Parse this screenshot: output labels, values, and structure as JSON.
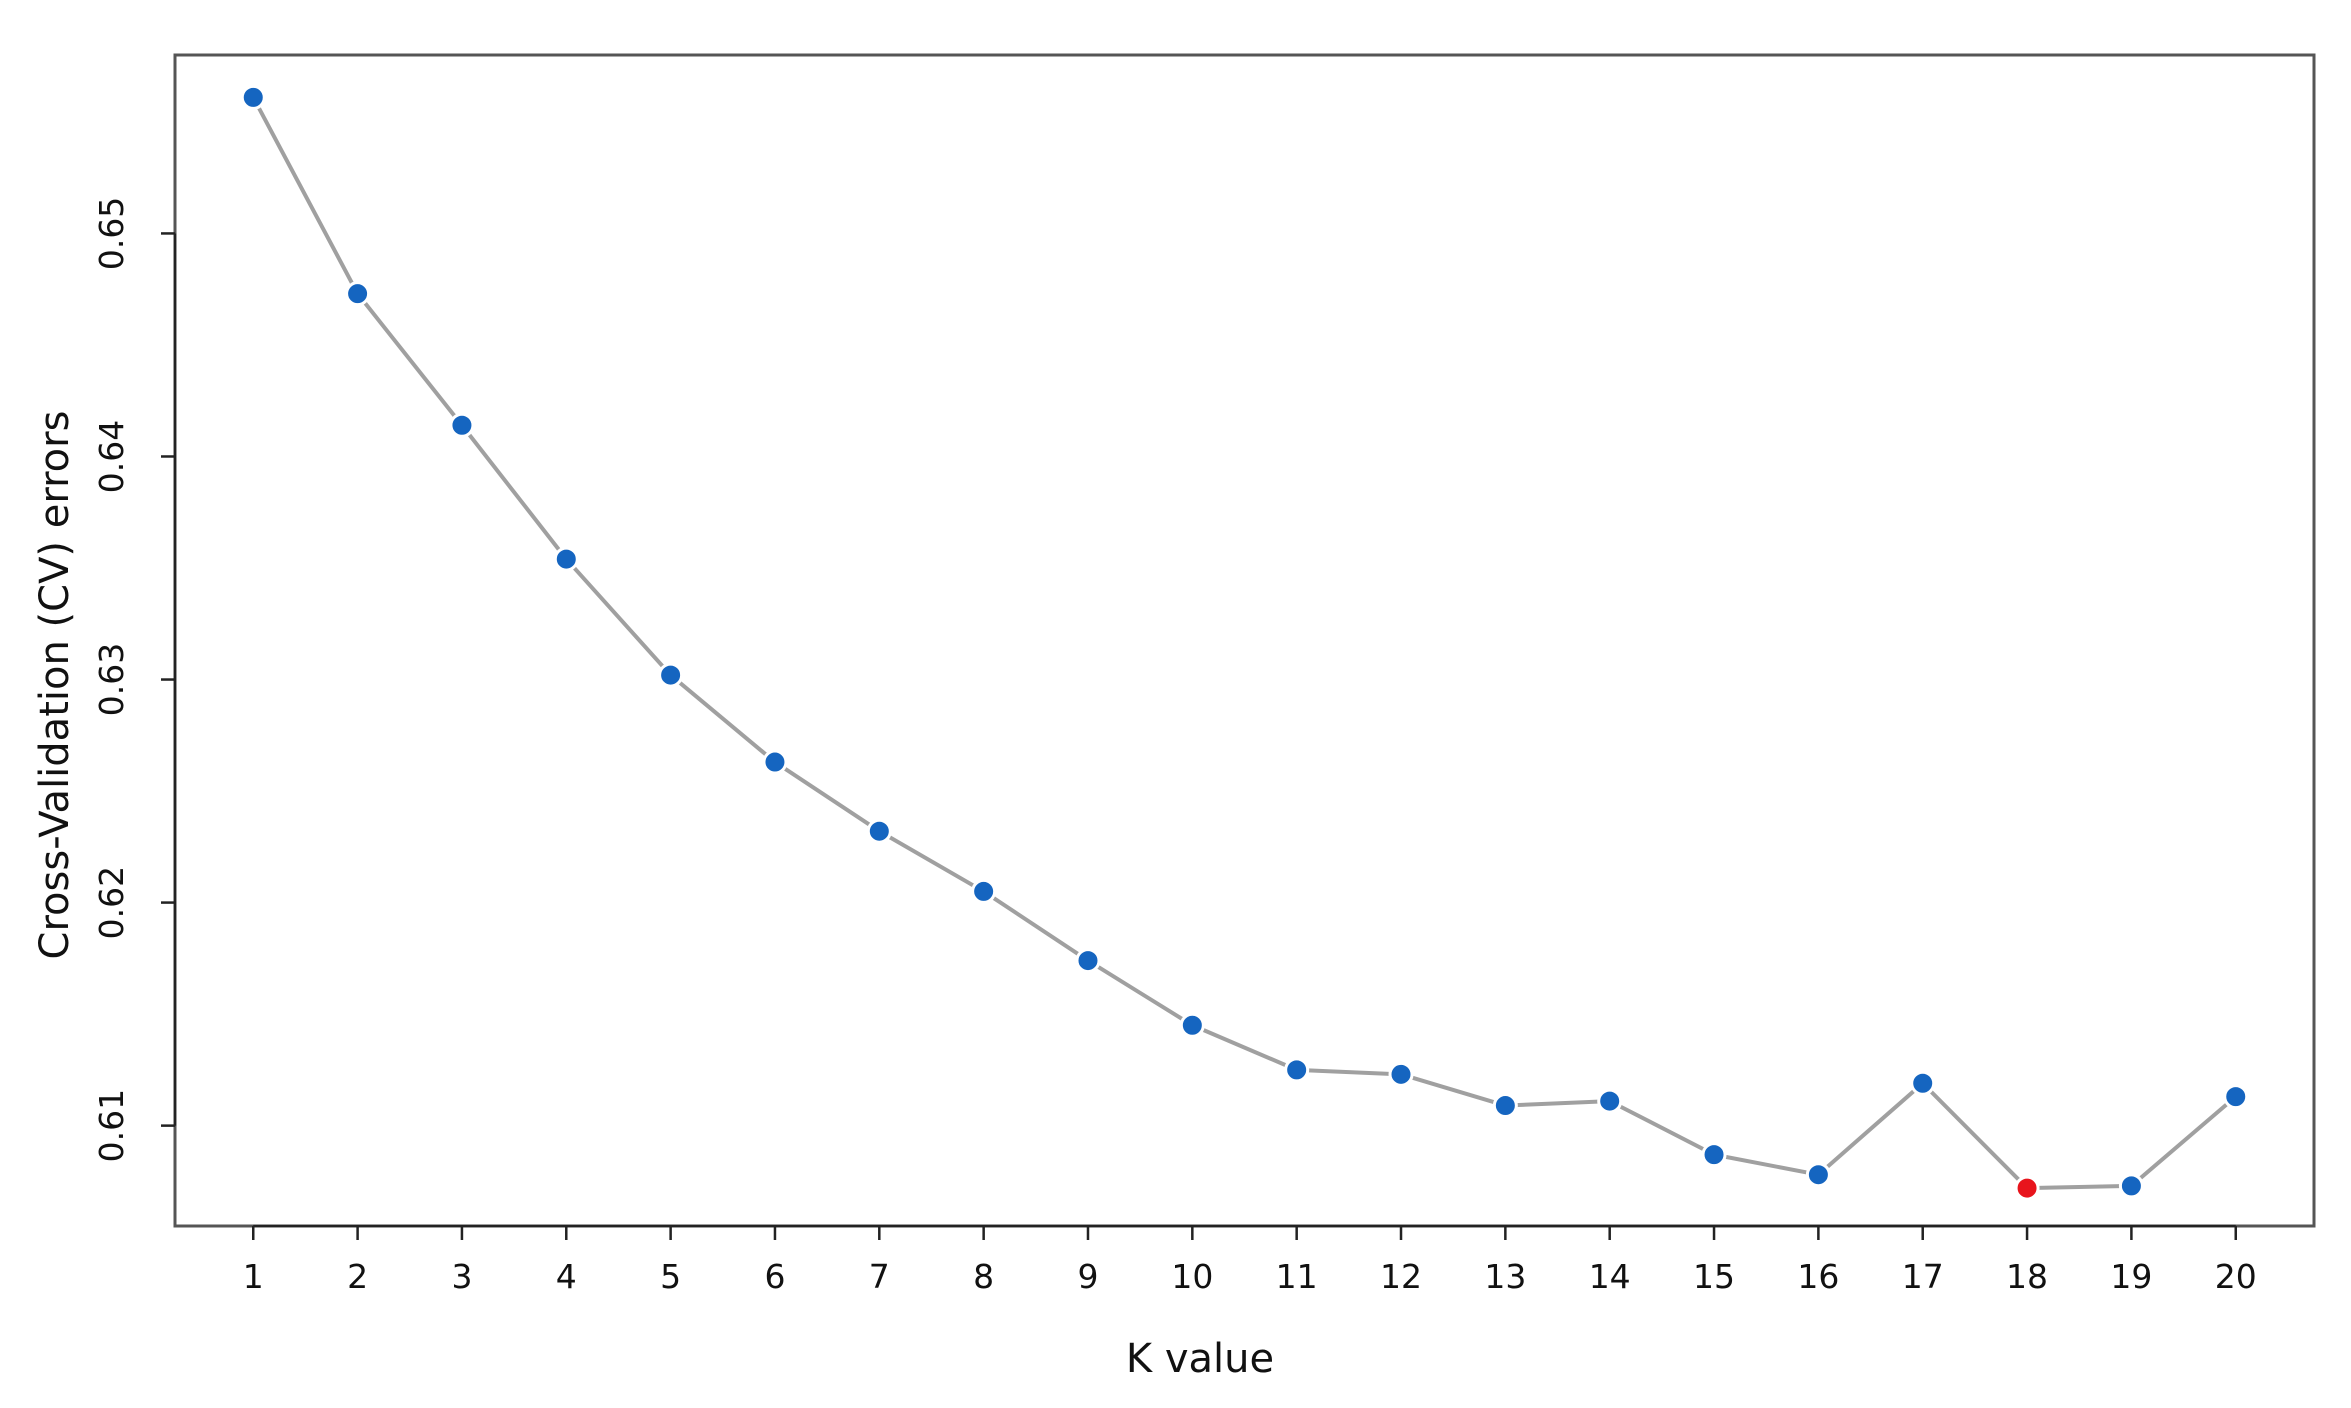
{
  "chart_data": {
    "type": "line",
    "title": "",
    "xlabel": "K value",
    "ylabel": "Cross-Validation (CV) errors",
    "x": [
      1,
      2,
      3,
      4,
      5,
      6,
      7,
      8,
      9,
      10,
      11,
      12,
      13,
      14,
      15,
      16,
      17,
      18,
      19,
      20
    ],
    "x_tick_labels": [
      "1",
      "2",
      "3",
      "4",
      "5",
      "6",
      "7",
      "8",
      "9",
      "10",
      "11",
      "12",
      "13",
      "14",
      "15",
      "16",
      "17",
      "18",
      "19",
      "20"
    ],
    "y_ticks": [
      0.61,
      0.62,
      0.63,
      0.64,
      0.65
    ],
    "y_tick_labels": [
      "0.61",
      "0.62",
      "0.63",
      "0.64",
      "0.65"
    ],
    "series": [
      {
        "values": [
          0.6561,
          0.6473,
          0.6414,
          0.6354,
          0.6302,
          0.6263,
          0.6232,
          0.6205,
          0.6174,
          0.6145,
          0.6125,
          0.6123,
          0.6109,
          0.6111,
          0.6087,
          0.6078,
          0.6119,
          0.6072,
          0.6073,
          0.6113
        ],
        "line_color": "#a0a0a0",
        "point_color": "#1565c0"
      }
    ],
    "highlight": {
      "x": 18,
      "color": "#e8141c"
    },
    "xlim": [
      0.25,
      20.75
    ],
    "ylim": [
      0.6055,
      0.658
    ],
    "grid": false,
    "legend": "none"
  }
}
